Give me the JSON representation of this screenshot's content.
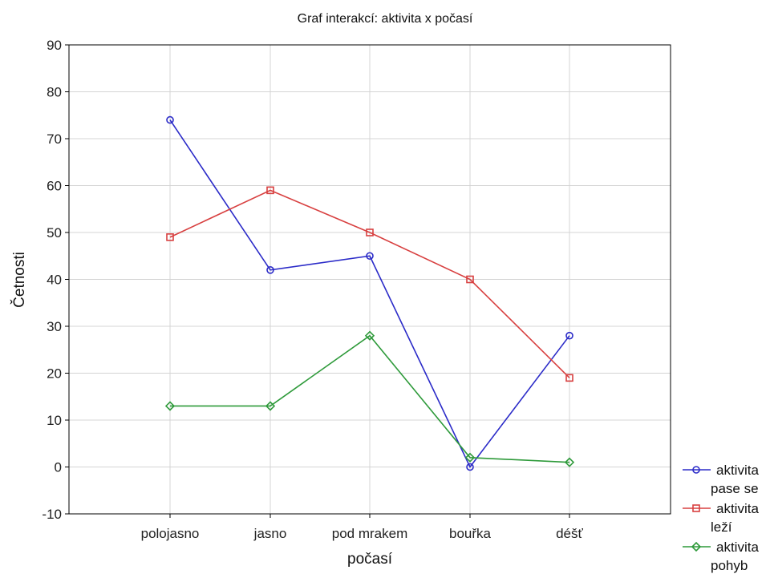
{
  "chart_data": {
    "type": "line",
    "title": "Graf interakcí: aktivita x počasí",
    "xlabel": "počasí",
    "ylabel": "Četnosti",
    "categories": [
      "polojasno",
      "jasno",
      "pod mrakem",
      "bouřka",
      "déšť"
    ],
    "ylim": [
      -10,
      90
    ],
    "yticks": [
      -10,
      0,
      10,
      20,
      30,
      40,
      50,
      60,
      70,
      80,
      90
    ],
    "grid": true,
    "legend_position": "bottom-right",
    "series": [
      {
        "name": "aktivita pase se",
        "legend_lines": [
          "aktivita",
          "pase se"
        ],
        "color": "#2b2bc8",
        "marker": "circle",
        "values": [
          74,
          42,
          45,
          0,
          28
        ]
      },
      {
        "name": "aktivita leží",
        "legend_lines": [
          "aktivita",
          "leží"
        ],
        "color": "#d84040",
        "marker": "square",
        "values": [
          49,
          59,
          50,
          40,
          19
        ]
      },
      {
        "name": "aktivita pohyb",
        "legend_lines": [
          "aktivita",
          "pohyb"
        ],
        "color": "#2e9a3a",
        "marker": "diamond",
        "values": [
          13,
          13,
          28,
          2,
          1
        ]
      }
    ]
  }
}
